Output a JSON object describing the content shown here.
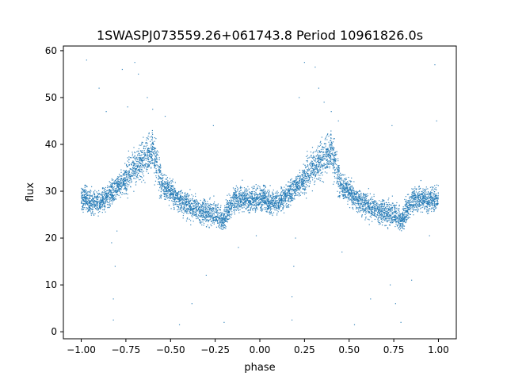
{
  "chart_data": {
    "type": "scatter",
    "title": "1SWASPJ073559.26+061743.8 Period 10961826.0s",
    "xlabel": "phase",
    "ylabel": "flux",
    "xlim": [
      -1.1,
      1.1
    ],
    "ylim": [
      -1.5,
      61.0
    ],
    "x_ticks": [
      -1.0,
      -0.75,
      -0.5,
      -0.25,
      0.0,
      0.25,
      0.5,
      0.75,
      1.0
    ],
    "x_tick_labels": [
      "−1.00",
      "−0.75",
      "−0.50",
      "−0.25",
      "0.00",
      "0.25",
      "0.50",
      "0.75",
      "1.00"
    ],
    "y_ticks": [
      0,
      10,
      20,
      30,
      40,
      50,
      60
    ],
    "y_tick_labels": [
      "0",
      "10",
      "20",
      "30",
      "40",
      "50",
      "60"
    ],
    "grid": false,
    "legend": "none",
    "point_color": "#1f77b4",
    "series": [
      {
        "symmetric_about_phase": true,
        "trend": {
          "phase": [
            0.0,
            0.02,
            0.05,
            0.1,
            0.15,
            0.2,
            0.25,
            0.3,
            0.35,
            0.4,
            0.45,
            0.5,
            0.55,
            0.6,
            0.65,
            0.7,
            0.75,
            0.8,
            0.85,
            0.9,
            0.95,
            1.0
          ],
          "flux": [
            28.5,
            29.0,
            27.5,
            27.5,
            29.0,
            31.0,
            32.5,
            35.0,
            37.0,
            39.0,
            31.5,
            30.0,
            28.0,
            27.0,
            26.0,
            25.5,
            25.0,
            24.0,
            28.0,
            28.5,
            28.0,
            28.5
          ]
        },
        "outliers": [
          {
            "x": -0.82,
            "y": 2.5
          },
          {
            "x": -0.82,
            "y": 7.0
          },
          {
            "x": -0.81,
            "y": 14.0
          },
          {
            "x": -0.83,
            "y": 19.0
          },
          {
            "x": -0.8,
            "y": 21.5
          },
          {
            "x": -0.86,
            "y": 47.0
          },
          {
            "x": -0.9,
            "y": 52.0
          },
          {
            "x": -0.97,
            "y": 58.0
          },
          {
            "x": -0.7,
            "y": 57.5
          },
          {
            "x": -0.68,
            "y": 55.0
          },
          {
            "x": -0.63,
            "y": 50.0
          },
          {
            "x": -0.74,
            "y": 48.0
          },
          {
            "x": -0.77,
            "y": 56.0
          },
          {
            "x": -0.6,
            "y": 47.5
          },
          {
            "x": -0.45,
            "y": 1.5
          },
          {
            "x": -0.38,
            "y": 6.0
          },
          {
            "x": -0.3,
            "y": 12.0
          },
          {
            "x": -0.2,
            "y": 2.0
          },
          {
            "x": -0.12,
            "y": 18.0
          },
          {
            "x": -0.02,
            "y": 20.5
          },
          {
            "x": 0.18,
            "y": 2.5
          },
          {
            "x": 0.18,
            "y": 7.5
          },
          {
            "x": 0.19,
            "y": 14.0
          },
          {
            "x": 0.2,
            "y": 20.0
          },
          {
            "x": 0.22,
            "y": 50.0
          },
          {
            "x": 0.25,
            "y": 57.5
          },
          {
            "x": 0.31,
            "y": 56.5
          },
          {
            "x": 0.33,
            "y": 52.0
          },
          {
            "x": 0.36,
            "y": 49.0
          },
          {
            "x": 0.4,
            "y": 47.0
          },
          {
            "x": 0.44,
            "y": 45.0
          },
          {
            "x": 0.46,
            "y": 17.0
          },
          {
            "x": 0.53,
            "y": 1.5
          },
          {
            "x": 0.62,
            "y": 7.0
          },
          {
            "x": 0.73,
            "y": 10.0
          },
          {
            "x": 0.76,
            "y": 6.0
          },
          {
            "x": 0.79,
            "y": 2.0
          },
          {
            "x": 0.85,
            "y": 11.0
          },
          {
            "x": 0.98,
            "y": 57.0
          },
          {
            "x": 0.99,
            "y": 45.0
          },
          {
            "x": 0.95,
            "y": 20.5
          },
          {
            "x": -0.26,
            "y": 44.0
          },
          {
            "x": 0.74,
            "y": 44.0
          },
          {
            "x": -0.53,
            "y": 46.0
          }
        ]
      }
    ]
  }
}
